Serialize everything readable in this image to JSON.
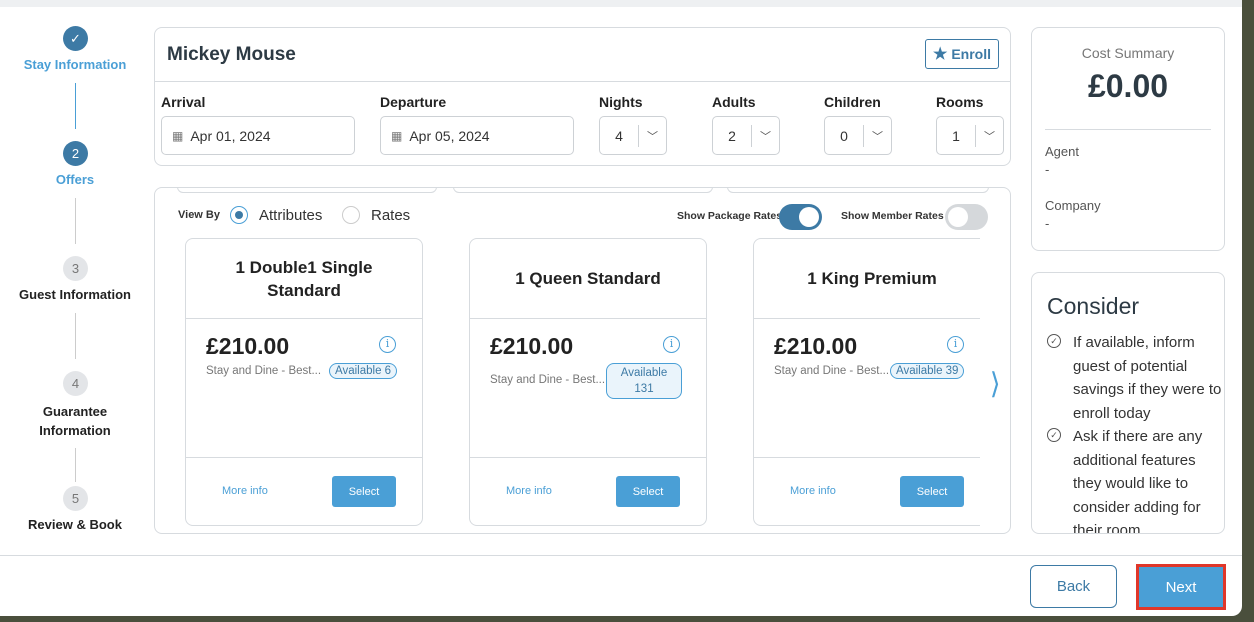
{
  "stepper": [
    {
      "num": "✓",
      "label": "Stay Information",
      "state": "done"
    },
    {
      "num": "2",
      "label": "Offers",
      "state": "active"
    },
    {
      "num": "3",
      "label": "Guest Information",
      "state": "todo"
    },
    {
      "num": "4",
      "label": "Guarantee Information",
      "state": "todo"
    },
    {
      "num": "5",
      "label": "Review & Book",
      "state": "todo"
    }
  ],
  "guest": {
    "name": "Mickey Mouse",
    "enroll_label": "Enroll"
  },
  "stay": {
    "arrival_label": "Arrival",
    "arrival": "Apr 01, 2024",
    "departure_label": "Departure",
    "departure": "Apr 05, 2024",
    "nights_label": "Nights",
    "nights": "4",
    "adults_label": "Adults",
    "adults": "2",
    "children_label": "Children",
    "children": "0",
    "rooms_label": "Rooms",
    "rooms": "1"
  },
  "offers": {
    "view_by_label": "View By",
    "option_attributes": "Attributes",
    "option_rates": "Rates",
    "selected_view": "Attributes",
    "package_rates_label": "Show Package Rates",
    "package_rates_on": true,
    "member_rates_label": "Show Member Rates",
    "member_rates_on": false,
    "rooms": [
      {
        "title": "1 Double1 Single Standard",
        "price": "£210.00",
        "desc": "Stay and Dine - Best...",
        "badge": "Available 6",
        "more": "More info",
        "select": "Select"
      },
      {
        "title": "1 Queen Standard",
        "price": "£210.00",
        "desc": "Stay and Dine - Best...",
        "badge": "Available 131",
        "more": "More info",
        "select": "Select"
      },
      {
        "title": "1 King Premium",
        "price": "£210.00",
        "desc": "Stay and Dine - Best...",
        "badge": "Available 39",
        "more": "More info",
        "select": "Select"
      }
    ]
  },
  "cost": {
    "title": "Cost Summary",
    "amount": "£0.00",
    "agent_label": "Agent",
    "agent": "-",
    "company_label": "Company",
    "company": "-"
  },
  "consider": {
    "title": "Consider",
    "tips": [
      "If available, inform guest of potential savings if they were to enroll today",
      "Ask if there are any additional features they would like to consider adding for their room"
    ]
  },
  "footer": {
    "back": "Back",
    "next": "Next"
  },
  "colors": {
    "primary": "#4a9fd6",
    "dark": "#3d7aa5",
    "highlight": "#e0372a"
  }
}
